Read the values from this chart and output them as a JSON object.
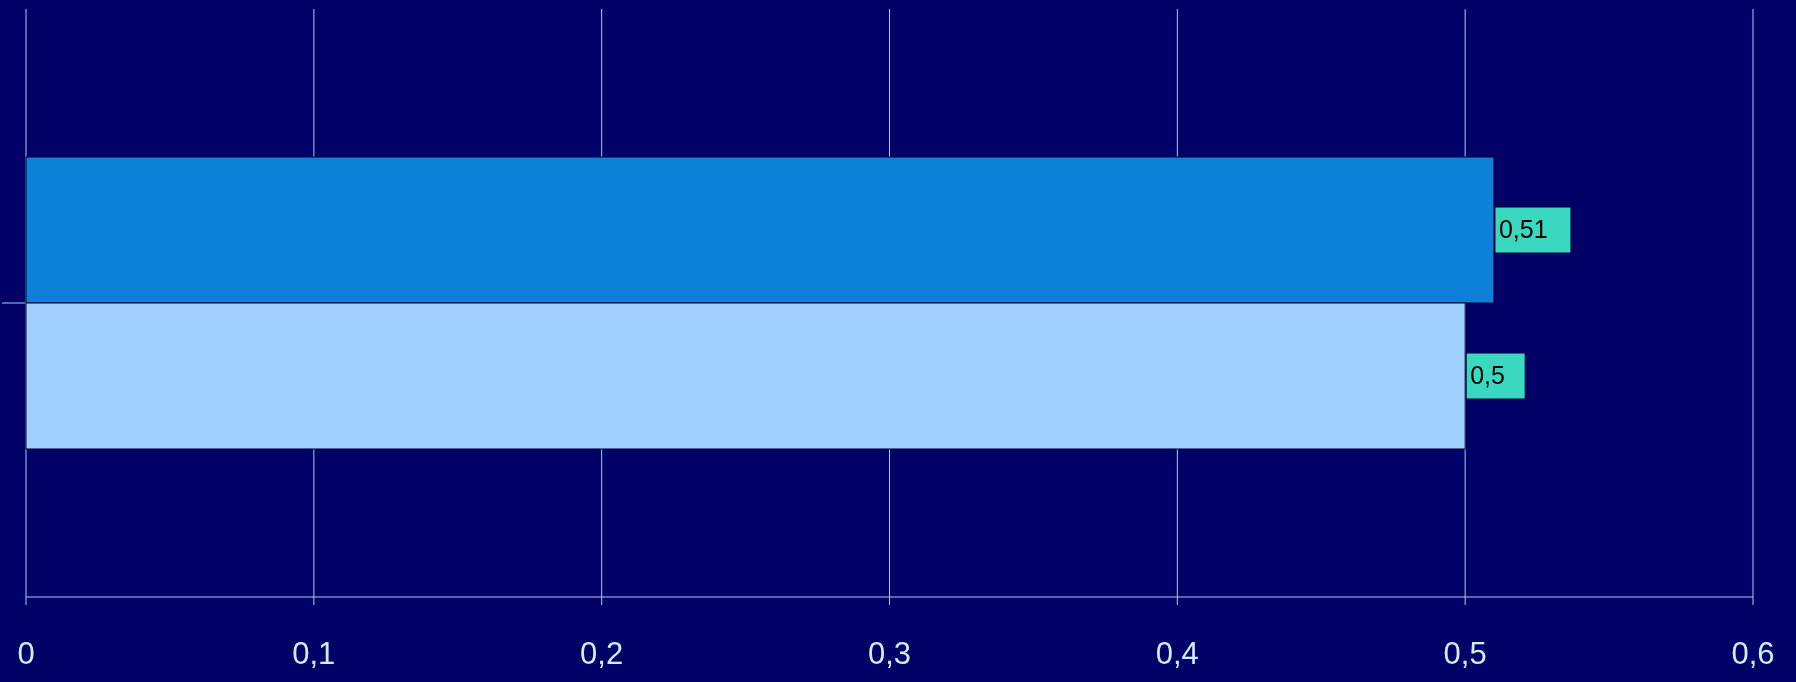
{
  "chart_data": {
    "type": "bar",
    "orientation": "horizontal",
    "categories": [
      null
    ],
    "series": [
      {
        "color": "#0f80d8",
        "values": [
          0.51
        ],
        "value_labels": [
          "0,51"
        ]
      },
      {
        "color": "#a0d0ff",
        "values": [
          0.5
        ],
        "value_labels": [
          "0,5"
        ]
      }
    ],
    "xlim": [
      0,
      0.6
    ],
    "xticks": [
      0,
      {
        "value": 0.1,
        "label": "0,1"
      },
      {
        "value": 0.2,
        "label": "0,2"
      },
      {
        "value": 0.3,
        "label": "0,3"
      },
      {
        "value": 0.4,
        "label": "0,4"
      },
      {
        "value": 0.5,
        "label": "0,5"
      },
      {
        "value": 0.6,
        "label": "0,6"
      }
    ],
    "grid": "x"
  }
}
